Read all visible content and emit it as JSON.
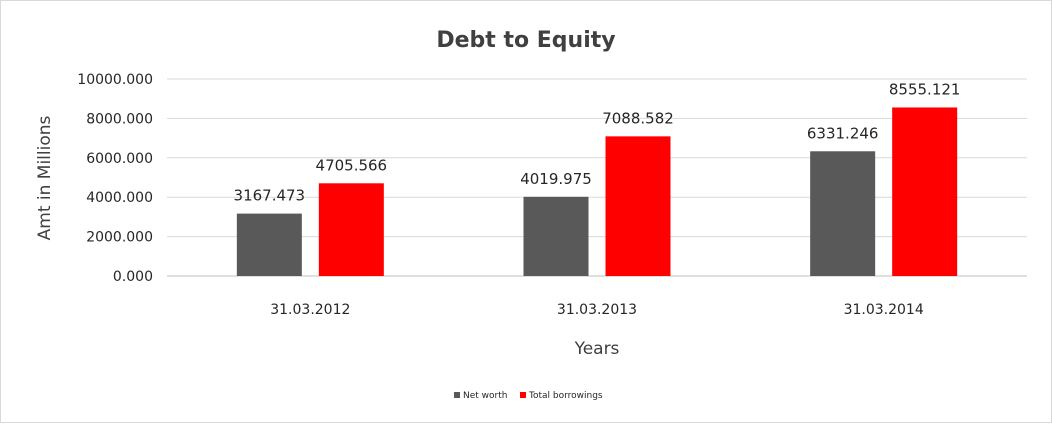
{
  "chart_data": {
    "type": "bar",
    "title": "Debt to Equity",
    "xlabel": "Years",
    "ylabel": "Amt in Millions",
    "categories": [
      "31.03.2012",
      "31.03.2013",
      "31.03.2014"
    ],
    "series": [
      {
        "name": "Net worth",
        "color": "#595959",
        "values": [
          3167.473,
          4019.975,
          6331.246
        ]
      },
      {
        "name": "Total borrowings",
        "color": "#ff0000",
        "values": [
          4705.566,
          7088.582,
          8555.121
        ]
      }
    ],
    "data_labels": [
      [
        "3167.473",
        "4019.975",
        "6331.246"
      ],
      [
        "4705.566",
        "7088.582",
        "8555.121"
      ]
    ],
    "y_ticks": [
      0,
      2000,
      4000,
      6000,
      8000,
      10000
    ],
    "y_tick_labels": [
      "0.000",
      "2000.000",
      "4000.000",
      "6000.000",
      "8000.000",
      "10000.000"
    ],
    "ylim": [
      0,
      10000
    ],
    "grid": true,
    "legend_position": "bottom"
  }
}
